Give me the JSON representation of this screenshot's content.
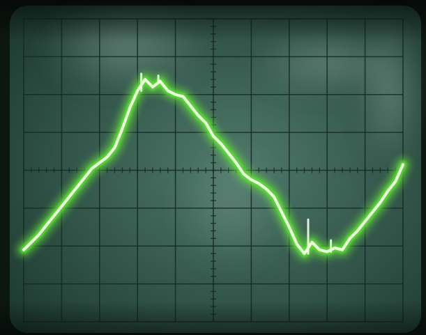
{
  "photo": {
    "subject": "oscilloscope-screen",
    "colors": {
      "bezel": "#0d1711",
      "screen_center": "#4f7a6c",
      "screen_edge": "#1e3a31",
      "glare": "#9fb7b0",
      "grid": "#142a22",
      "trace_glow": "#63e23a",
      "trace_core": "#f2ffe6"
    }
  },
  "graticule": {
    "divisions_x": 10,
    "divisions_y": 8,
    "minor_ticks_per_division": 5
  },
  "trace": {
    "x": [
      0.0,
      0.2,
      0.4,
      0.6,
      0.8,
      1.0,
      1.2,
      1.4,
      1.6,
      1.8,
      2.0,
      2.2,
      2.4,
      2.6,
      2.8,
      3.0,
      3.2,
      3.4,
      3.6,
      3.8,
      4.0,
      4.2,
      4.4,
      4.6,
      4.8,
      5.0,
      5.2,
      5.4,
      5.6,
      5.8,
      6.0,
      6.2,
      6.4,
      6.6,
      6.8,
      7.0,
      7.2,
      7.4,
      7.6,
      7.8,
      8.0,
      8.2,
      8.4,
      8.6,
      8.8,
      9.0,
      9.2,
      9.4,
      9.6,
      9.8,
      10.0
    ],
    "y": [
      -2.1,
      -1.9,
      -1.7,
      -1.45,
      -1.2,
      -0.95,
      -0.7,
      -0.45,
      -0.2,
      0.05,
      0.2,
      0.35,
      0.6,
      1.1,
      1.65,
      2.1,
      2.4,
      2.2,
      2.35,
      2.1,
      2.0,
      1.95,
      1.7,
      1.45,
      1.25,
      0.9,
      0.7,
      0.45,
      0.2,
      -0.1,
      -0.25,
      -0.35,
      -0.5,
      -0.7,
      -1.1,
      -1.5,
      -1.95,
      -2.2,
      -1.9,
      -2.1,
      -2.15,
      -2.05,
      -2.1,
      -1.8,
      -1.6,
      -1.35,
      -1.1,
      -0.85,
      -0.55,
      -0.3,
      0.15
    ],
    "spikes": [
      {
        "x": 3.1,
        "y": 2.55
      },
      {
        "x": 3.55,
        "y": 2.5
      },
      {
        "x": 7.5,
        "y": -1.3
      },
      {
        "x": 8.1,
        "y": -1.85
      }
    ]
  }
}
